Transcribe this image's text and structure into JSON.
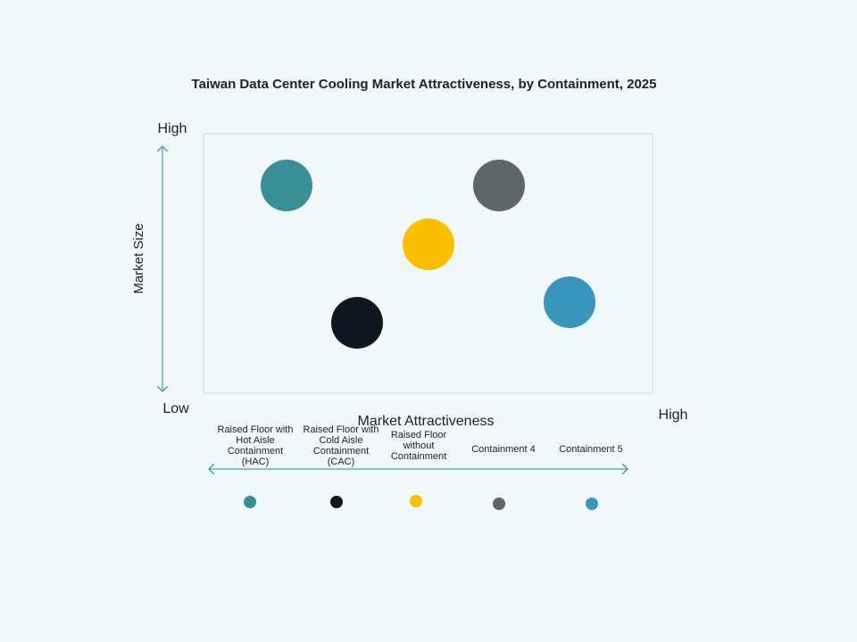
{
  "title": "Taiwan Data Center Cooling Market Attractiveness,  by Containment, 2025",
  "y_axis": {
    "label": "Market Size",
    "high": "High",
    "low": "Low"
  },
  "x_axis": {
    "label": "Market Attractiveness",
    "high": "High"
  },
  "items": [
    {
      "label": "Raised Floor with Hot Aisle Containment (HAC)",
      "color": "#3a8f96"
    },
    {
      "label": "Raised Floor with Cold Aisle Containment (CAC)",
      "color": "#0f1720"
    },
    {
      "label": "Raised Floor without Containment",
      "color": "#fbbf00"
    },
    {
      "label": "Containment 4",
      "color": "#5d6766"
    },
    {
      "label": "Containment 5",
      "color": "#3a95bd"
    }
  ]
}
